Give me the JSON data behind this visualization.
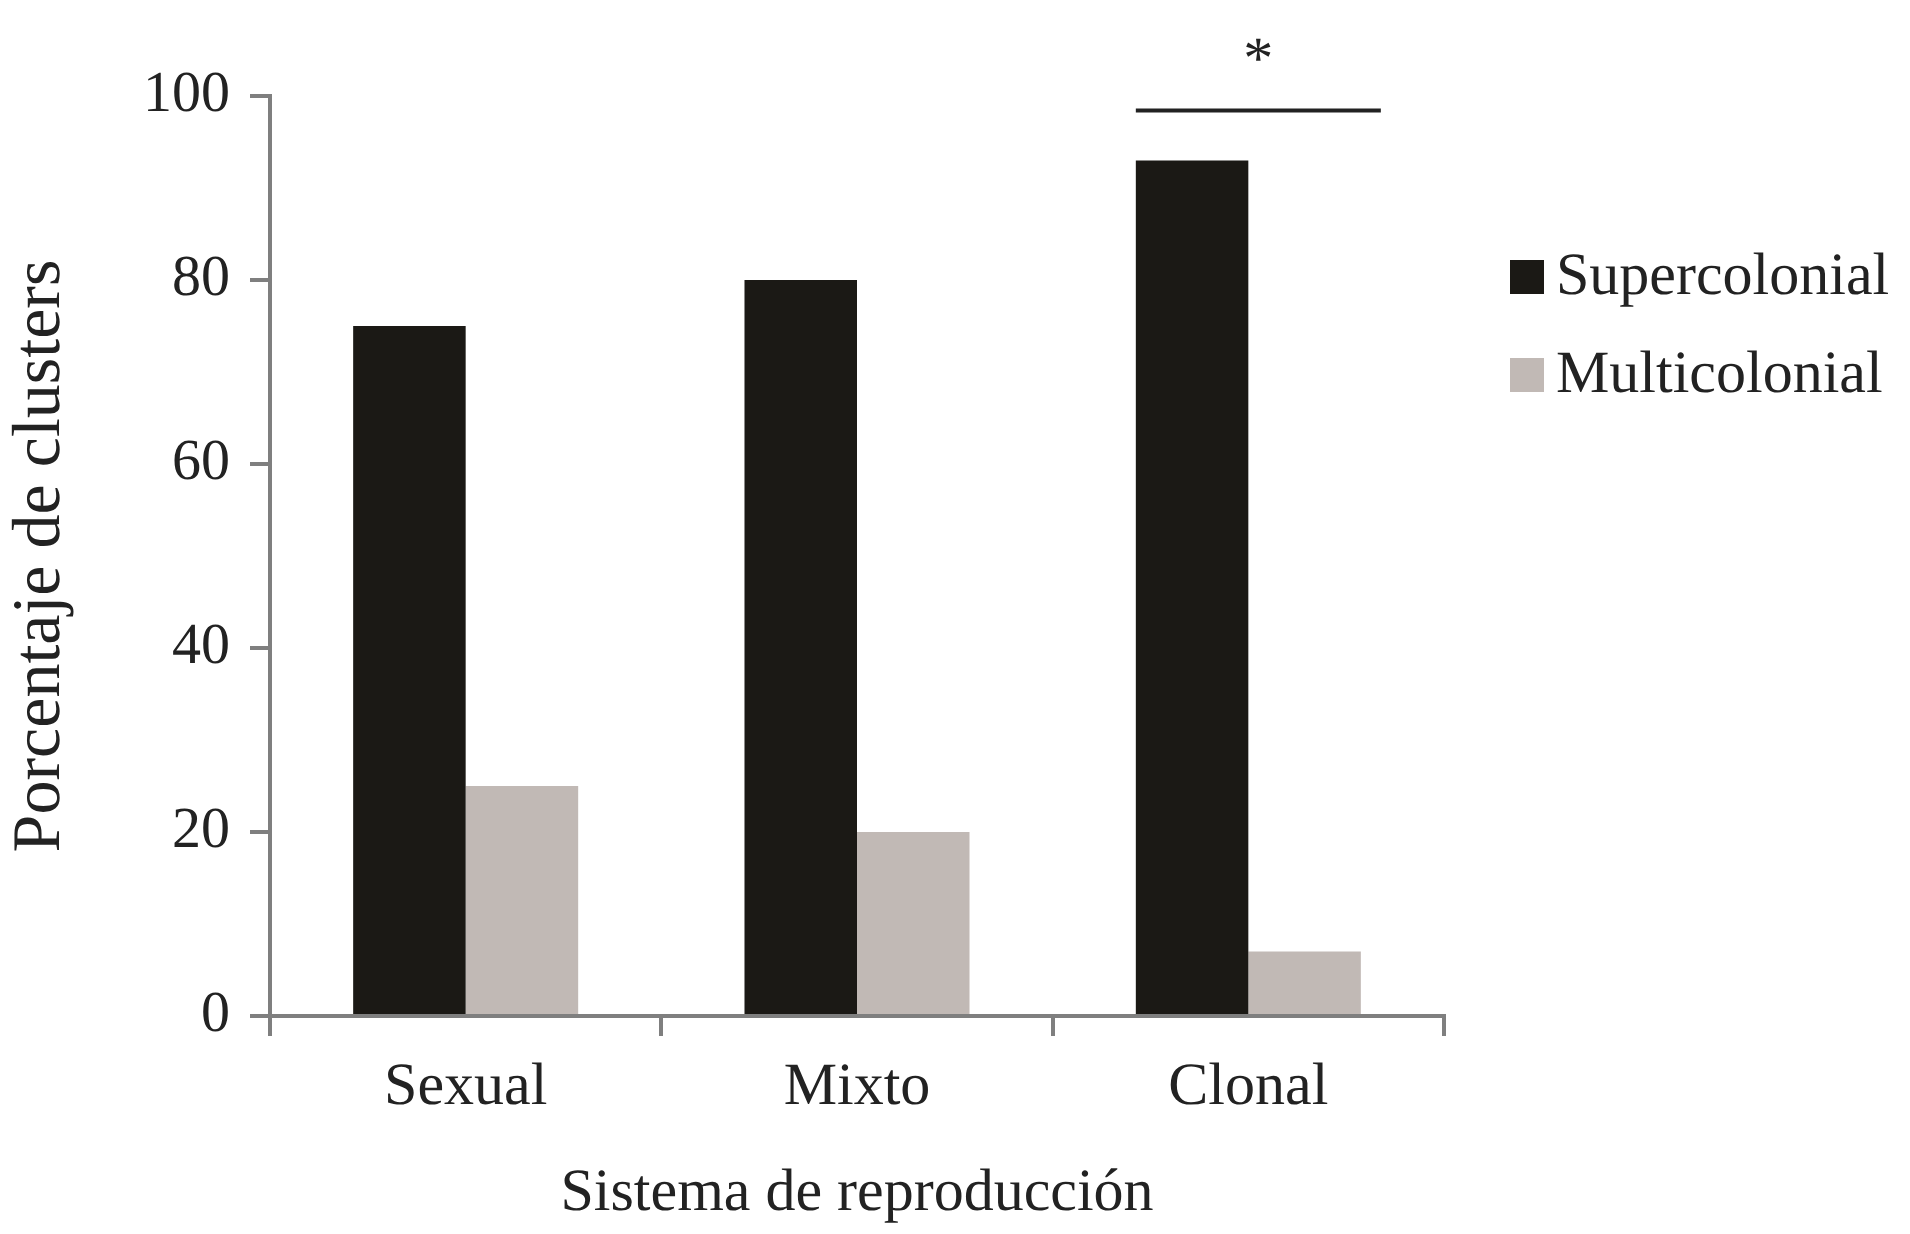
{
  "chart_data": {
    "type": "bar",
    "categories": [
      "Sexual",
      "Mixto",
      "Clonal"
    ],
    "series": [
      {
        "name": "Supercolonial",
        "color": "#1b1915",
        "values": [
          75,
          80,
          93
        ]
      },
      {
        "name": "Multicolonial",
        "color": "#c1b9b5",
        "values": [
          25,
          20,
          7
        ]
      }
    ],
    "xlabel": "Sistema de reproducción",
    "ylabel": "Porcentaje de clusters",
    "ylim": [
      0,
      100
    ],
    "yticks": [
      0,
      20,
      40,
      60,
      80,
      100
    ],
    "legend": "right",
    "annotations": [
      "*"
    ]
  }
}
